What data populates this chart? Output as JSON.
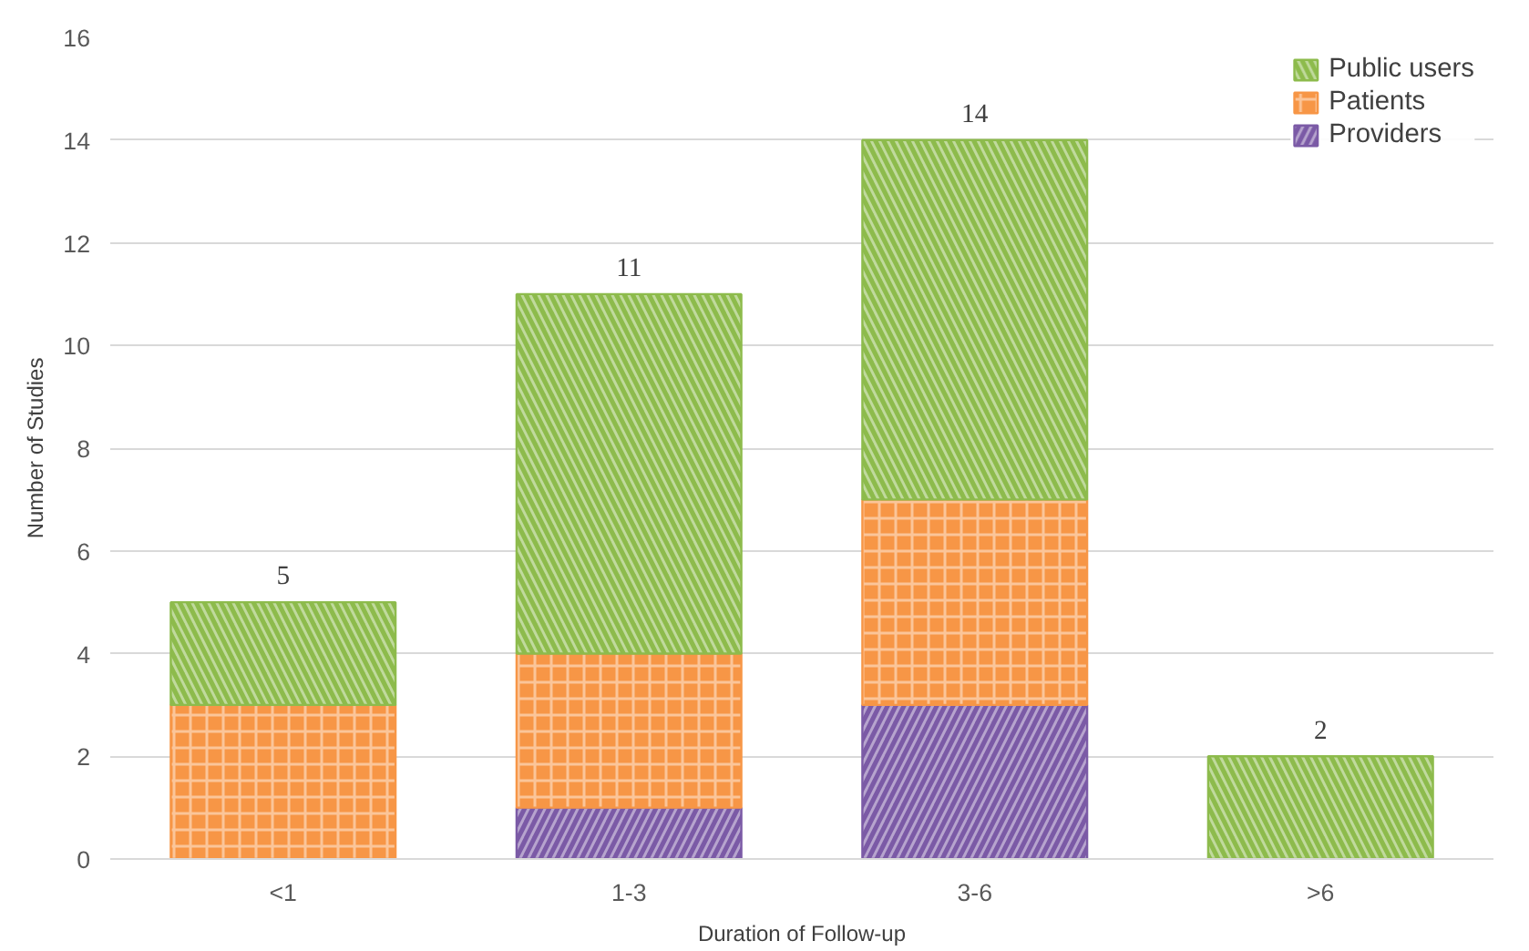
{
  "chart_data": {
    "type": "bar",
    "stacked": true,
    "xlabel": "Duration of Follow-up",
    "ylabel": "Number of Studies",
    "categories": [
      "<1",
      "1-3",
      "3-6",
      ">6"
    ],
    "series": [
      {
        "name": "Providers",
        "color": "#7b5aa6",
        "values": [
          0,
          1,
          3,
          0
        ]
      },
      {
        "name": "Patients",
        "color": "#f79646",
        "values": [
          3,
          3,
          4,
          0
        ]
      },
      {
        "name": "Public users",
        "color": "#8dbb4c",
        "values": [
          2,
          7,
          7,
          2
        ]
      }
    ],
    "totals": [
      "5",
      "11",
      "14",
      "2"
    ],
    "ylim": [
      0,
      16
    ],
    "yticks": [
      0,
      2,
      4,
      6,
      8,
      10,
      12,
      14,
      16
    ],
    "grid": "y",
    "legend": "top right"
  }
}
